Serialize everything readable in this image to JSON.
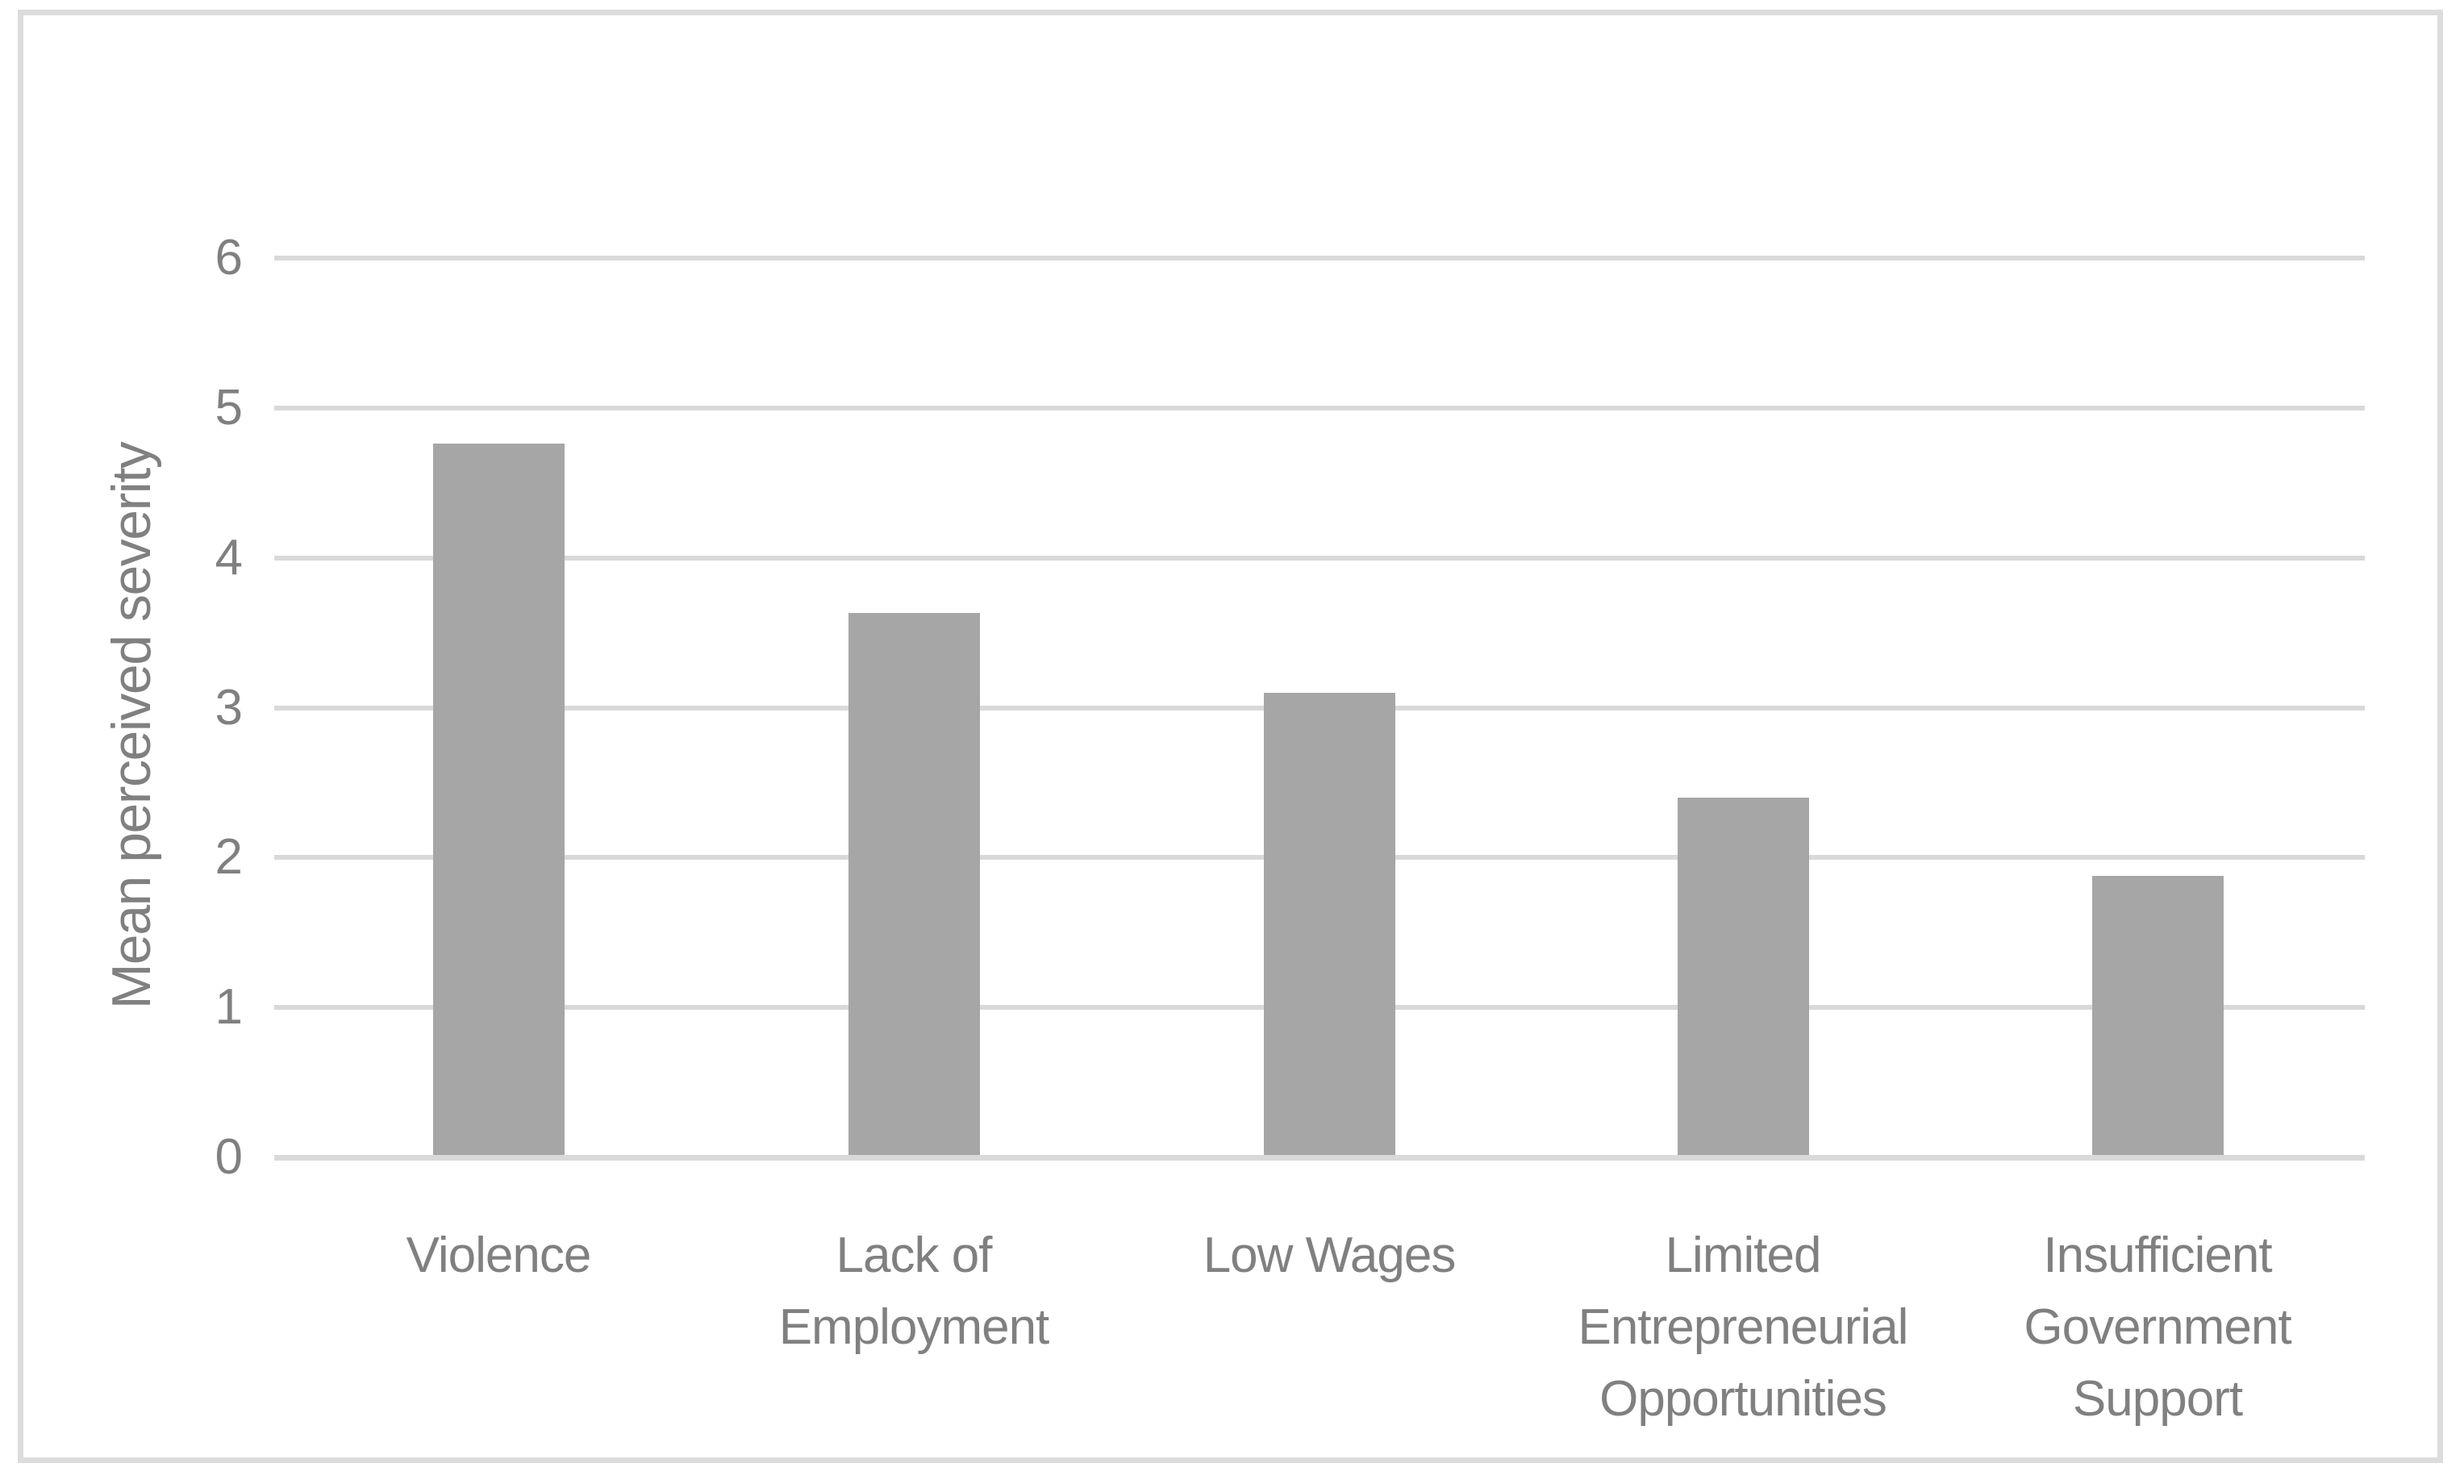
{
  "chart_data": {
    "type": "bar",
    "title": "",
    "xlabel": "",
    "ylabel": "Mean perceived severity",
    "categories": [
      "Violence",
      "Lack of Employment",
      "Low Wages",
      "Limited Entrepreneurial Opportunities",
      "Insufficient Government Support"
    ],
    "category_lines": [
      [
        "Violence"
      ],
      [
        "Lack of",
        "Employment"
      ],
      [
        "Low Wages"
      ],
      [
        "Limited",
        "Entrepreneurial",
        "Opportunities"
      ],
      [
        "Insufficient",
        "Government",
        "Support"
      ]
    ],
    "values": [
      4.76,
      3.63,
      3.1,
      2.4,
      1.88
    ],
    "ylim": [
      0,
      6
    ],
    "yticks": [
      0,
      1,
      2,
      3,
      4,
      5,
      6
    ],
    "grid": true,
    "legend": "none",
    "bar_color": "#a6a6a6",
    "gridline_color": "#d9d9d9",
    "axis_line_color": "#d9d9d9",
    "text_color": "#808080",
    "frame_color": "#dcdcdc",
    "background_color": "#ffffff"
  }
}
